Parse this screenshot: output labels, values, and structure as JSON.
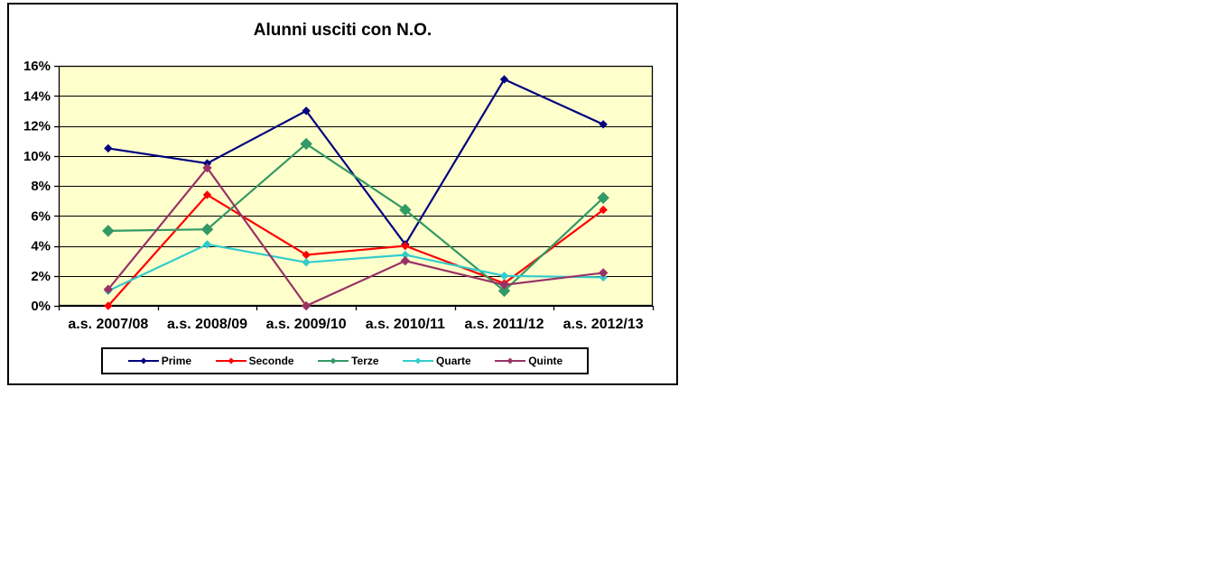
{
  "chart_frame": {
    "background": "#FFFFFF",
    "border_color": "#000000"
  },
  "chart_data": {
    "type": "line",
    "title": "Alunni usciti con N.O.",
    "xlabel": "",
    "ylabel": "",
    "categories": [
      "a.s. 2007/08",
      "a.s. 2008/09",
      "a.s. 2009/10",
      "a.s. 2010/11",
      "a.s. 2011/12",
      "a.s. 2012/13"
    ],
    "series": [
      {
        "name": "Prime",
        "color": "#000080",
        "marker": "diamond",
        "marker_size": 4,
        "values": [
          10.5,
          9.5,
          13.0,
          4.1,
          15.1,
          12.1
        ]
      },
      {
        "name": "Seconde",
        "color": "#FF0000",
        "marker": "diamond",
        "marker_size": 4,
        "values": [
          0.0,
          7.4,
          3.4,
          4.0,
          1.5,
          6.4
        ]
      },
      {
        "name": "Terze",
        "color": "#339966",
        "marker": "diamond",
        "marker_size": 6,
        "values": [
          5.0,
          5.1,
          10.8,
          6.4,
          1.0,
          7.2
        ]
      },
      {
        "name": "Quarte",
        "color": "#33CCCC",
        "marker": "diamond",
        "marker_size": 4,
        "values": [
          1.0,
          4.1,
          2.9,
          3.4,
          2.0,
          1.9
        ]
      },
      {
        "name": "Quinte",
        "color": "#993366",
        "marker": "diamond",
        "marker_size": 4.5,
        "values": [
          1.1,
          9.2,
          0.0,
          3.0,
          1.4,
          2.2
        ]
      }
    ],
    "ylim": [
      0,
      16
    ],
    "ytick_step": 2,
    "ytick_labels": [
      "0%",
      "2%",
      "4%",
      "6%",
      "8%",
      "10%",
      "12%",
      "14%",
      "16%"
    ],
    "plot_bg": "#FFFFCC",
    "grid": true,
    "gridline_color": "#000000",
    "axis_color": "#000000",
    "legend_position": "bottom"
  }
}
